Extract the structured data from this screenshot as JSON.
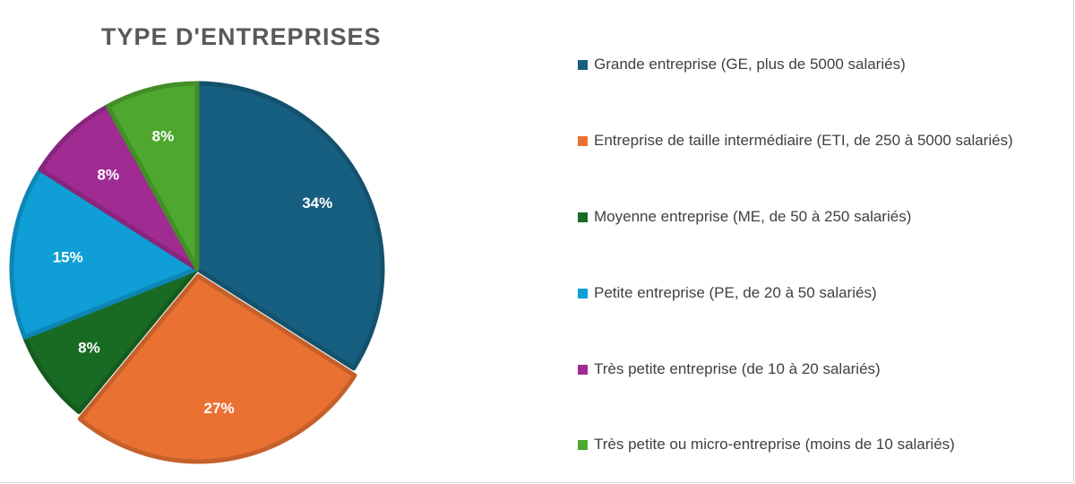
{
  "chart_data": {
    "type": "pie",
    "title": "TYPE D'ENTREPRISES",
    "categories": [
      "Grande entreprise (GE, plus de 5000 salariés)",
      "Entreprise de taille intermédiaire (ETI, de 250 à 5000 salariés)",
      "Moyenne entreprise (ME, de 50 à 250 salariés)",
      "Petite entreprise (PE, de 20 à 50 salariés)",
      "Très petite entreprise (de 10 à 20 salariés)",
      "Très petite ou micro-entreprise (moins de 10 salariés)"
    ],
    "values": [
      34,
      27,
      8,
      15,
      8,
      8
    ],
    "labels": [
      "34%",
      "27%",
      "8%",
      "15%",
      "8%",
      "8%"
    ],
    "colors": [
      "#175f80",
      "#e97132",
      "#196b24",
      "#0f9ed5",
      "#a02b93",
      "#4ea72e"
    ],
    "legend_position": "right"
  }
}
